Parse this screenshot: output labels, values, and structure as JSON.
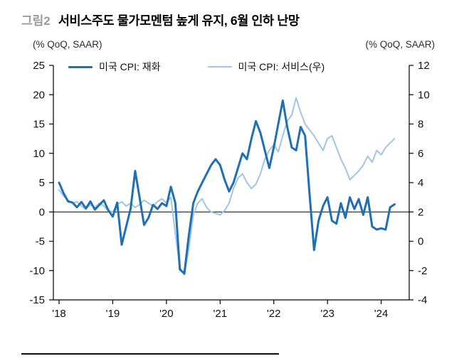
{
  "header": {
    "figure_label": "그림2",
    "title": "서비스주도 물가모멘텀 높게 유지, 6월 인하 난망"
  },
  "axis_units": {
    "left": "(% QoQ, SAAR)",
    "right": "(% QoQ, SAAR)"
  },
  "chart_data": {
    "type": "line",
    "x_unit": "month",
    "x_start": "2018-01",
    "x_tick_labels": [
      "'18",
      "'19",
      "'20",
      "'21",
      "'22",
      "'23",
      "'24"
    ],
    "left_axis": {
      "min": -15,
      "max": 25,
      "step": 5
    },
    "right_axis": {
      "min": -4,
      "max": 12,
      "step": 2
    },
    "grid": false,
    "legend_position": "top-inside",
    "series": [
      {
        "name": "미국 CPI: 재화",
        "axis": "left",
        "color": "#1f6fb5",
        "line_width": 3,
        "values": [
          5.0,
          3.2,
          1.8,
          1.6,
          0.8,
          1.7,
          0.6,
          1.8,
          0.4,
          1.2,
          2.0,
          0.3,
          -0.8,
          1.6,
          -5.6,
          -2.5,
          0.6,
          7.0,
          2.5,
          -2.2,
          -1.0,
          1.2,
          0.5,
          1.5,
          1.0,
          4.3,
          1.5,
          -9.8,
          -10.5,
          -4.0,
          1.5,
          3.5,
          5.0,
          6.5,
          8.0,
          9.0,
          8.0,
          5.5,
          3.5,
          5.0,
          7.5,
          10.0,
          9.0,
          12.5,
          15.5,
          13.5,
          10.5,
          7.5,
          11.0,
          15.0,
          19.0,
          14.5,
          11.0,
          10.5,
          14.5,
          13.0,
          3.0,
          -6.5,
          -1.5,
          1.0,
          2.5,
          -1.5,
          -2.0,
          1.5,
          -1.0,
          2.5,
          0.5,
          2.2,
          -0.5,
          2.5,
          -2.5,
          -3.0,
          -2.8,
          -3.0,
          0.8,
          1.3
        ]
      },
      {
        "name": "미국 CPI: 서비스(우)",
        "axis": "right",
        "color": "#9fc5e8",
        "line_width": 2,
        "values": [
          3.5,
          3.1,
          2.8,
          2.6,
          2.7,
          2.4,
          2.2,
          2.5,
          2.3,
          2.6,
          2.4,
          2.1,
          2.0,
          2.5,
          2.7,
          2.4,
          2.6,
          2.3,
          2.5,
          2.8,
          2.6,
          2.4,
          2.7,
          2.9,
          2.6,
          3.0,
          0.5,
          -1.8,
          -2.3,
          -0.5,
          1.8,
          2.6,
          2.9,
          2.3,
          2.0,
          1.9,
          1.8,
          2.1,
          2.6,
          3.6,
          4.3,
          4.6,
          4.0,
          3.6,
          3.9,
          4.6,
          5.6,
          6.2,
          6.6,
          6.1,
          7.2,
          8.2,
          8.6,
          9.8,
          8.8,
          8.0,
          7.6,
          7.2,
          6.7,
          6.2,
          7.0,
          7.2,
          6.4,
          5.6,
          5.0,
          4.2,
          4.5,
          4.8,
          5.2,
          5.8,
          5.4,
          6.2,
          5.9,
          6.4,
          6.7,
          7.0
        ]
      }
    ]
  }
}
